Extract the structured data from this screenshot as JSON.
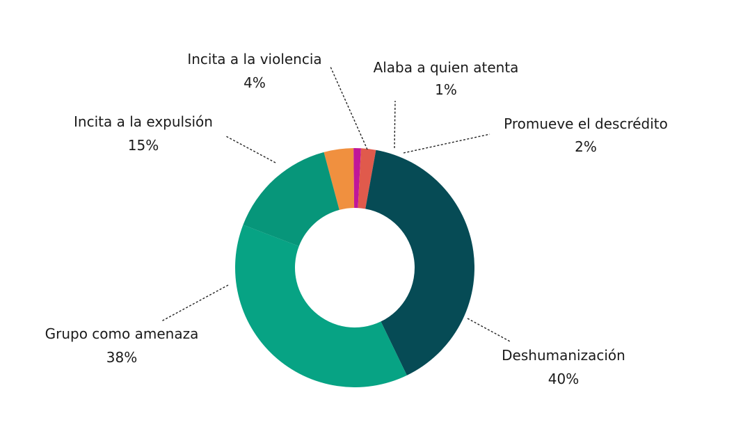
{
  "chart_data": {
    "type": "pie",
    "variant": "donut",
    "title": "",
    "legend": "none",
    "slices": [
      {
        "label": "Incita a la violencia",
        "value": 4,
        "percent_label": "4%",
        "color": "#f0903f"
      },
      {
        "label": "Alaba a quien atenta",
        "value": 1,
        "percent_label": "1%",
        "color": "#c0179a"
      },
      {
        "label": "Promueve el descrédito",
        "value": 2,
        "percent_label": "2%",
        "color": "#e05a4c"
      },
      {
        "label": "Deshumanización",
        "value": 40,
        "percent_label": "40%",
        "color": "#064b55"
      },
      {
        "label": "Grupo como amenaza",
        "value": 38,
        "percent_label": "38%",
        "color": "#07a384"
      },
      {
        "label": "Incita a la expulsión",
        "value": 15,
        "percent_label": "15%",
        "color": "#07967a"
      }
    ]
  }
}
